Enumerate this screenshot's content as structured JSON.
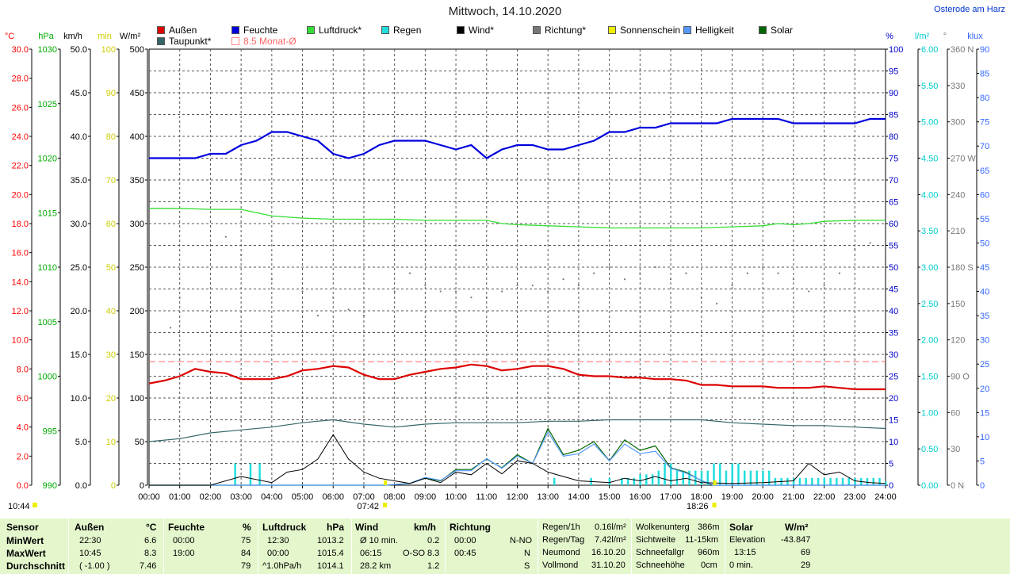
{
  "title": "Mittwoch, 14.10.2020",
  "location": "Osterode am Harz",
  "legend": [
    {
      "label": "Außen",
      "color": "#dd0000"
    },
    {
      "label": "Feuchte",
      "color": "#0000dd"
    },
    {
      "label": "Luftdruck*",
      "color": "#33dd33"
    },
    {
      "label": "Regen",
      "color": "#22dddd"
    },
    {
      "label": "Wind*",
      "color": "#000000"
    },
    {
      "label": "Richtung*",
      "color": "#777777"
    },
    {
      "label": "Sonnenschein",
      "color": "#eeee00"
    },
    {
      "label": "Helligkeit",
      "color": "#5599ff"
    },
    {
      "label": "Solar",
      "color": "#006600"
    },
    {
      "label": "Taupunkt*",
      "color": "#336666"
    },
    {
      "label": "8.5 Monat-Ø",
      "color": "#ff8888"
    }
  ],
  "chart_data": {
    "type": "line",
    "title": "Mittwoch, 14.10.2020",
    "x_ticks": [
      "00:00",
      "01:00",
      "02:00",
      "03:00",
      "04:00",
      "05:00",
      "06:00",
      "07:00",
      "08:00",
      "09:00",
      "10:00",
      "11:00",
      "12:00",
      "13:00",
      "14:00",
      "15:00",
      "16:00",
      "17:00",
      "18:00",
      "19:00",
      "20:00",
      "21:00",
      "22:00",
      "23:00",
      "24:00"
    ],
    "axes": [
      {
        "unit": "°C",
        "color": "#ff0000",
        "ticks": [
          "30.0",
          "28.0",
          "26.0",
          "24.0",
          "22.0",
          "20.0",
          "18.0",
          "16.0",
          "14.0",
          "12.0",
          "10.0",
          "8.0",
          "6.0",
          "4.0",
          "2.0",
          "0.0"
        ],
        "range": [
          0,
          30
        ]
      },
      {
        "unit": "hPa",
        "color": "#00aa00",
        "ticks": [
          "1030",
          "1025",
          "1020",
          "1015",
          "1010",
          "1005",
          "1000",
          "995",
          "990"
        ],
        "range": [
          990,
          1030
        ]
      },
      {
        "unit": "km/h",
        "color": "#000000",
        "ticks": [
          "50.0",
          "45.0",
          "40.0",
          "35.0",
          "30.0",
          "25.0",
          "20.0",
          "15.0",
          "10.0",
          "5.0",
          "0.0"
        ],
        "range": [
          0,
          50
        ]
      },
      {
        "unit": "min",
        "color": "#cccc00",
        "ticks": [
          "100",
          "90",
          "80",
          "70",
          "60",
          "50",
          "40",
          "30",
          "20",
          "10",
          "0"
        ],
        "range": [
          0,
          100
        ]
      },
      {
        "unit": "W/m²",
        "color": "#000000",
        "ticks": [
          "500",
          "450",
          "400",
          "350",
          "300",
          "250",
          "200",
          "150",
          "100",
          "50",
          "0"
        ],
        "range": [
          0,
          500
        ]
      },
      {
        "unit": "%",
        "color": "#0000cc",
        "ticks": [
          "100",
          "95",
          "90",
          "85",
          "80",
          "75",
          "70",
          "65",
          "60",
          "55",
          "50",
          "45",
          "40",
          "35",
          "30",
          "25",
          "20",
          "15",
          "10",
          "5",
          "0"
        ],
        "range": [
          0,
          100
        ]
      },
      {
        "unit": "l/m²",
        "color": "#00cccc",
        "ticks": [
          "6.00",
          "5.50",
          "5.00",
          "4.50",
          "4.00",
          "3.50",
          "3.00",
          "2.50",
          "2.00",
          "1.50",
          "1.00",
          "0.50",
          "0.00"
        ],
        "range": [
          0,
          6
        ]
      },
      {
        "unit": "°",
        "color": "#777777",
        "ticks": [
          "360 N",
          "330",
          "300",
          "270 W",
          "240",
          "210",
          "180 S",
          "150",
          "120",
          "90 O",
          "60",
          "30",
          "0 N"
        ],
        "range": [
          0,
          360
        ]
      },
      {
        "unit": "klux",
        "color": "#3366ff",
        "ticks": [
          "90",
          "85",
          "80",
          "75",
          "70",
          "65",
          "60",
          "55",
          "50",
          "45",
          "40",
          "35",
          "30",
          "25",
          "20",
          "15",
          "10",
          "5",
          "0"
        ],
        "range": [
          0,
          90
        ]
      }
    ],
    "sunrise": "07:42",
    "sunset": "18:26",
    "daylength_label": "10:44",
    "monthly_avg_temp": 8.5,
    "series": [
      {
        "name": "Außen",
        "color": "#dd0000",
        "unit": "°C",
        "x": [
          0,
          0.5,
          1,
          1.5,
          2,
          2.5,
          3,
          3.5,
          4,
          4.5,
          5,
          5.5,
          6,
          6.5,
          7,
          7.5,
          8,
          8.5,
          9,
          9.5,
          10,
          10.5,
          11,
          11.5,
          12,
          12.5,
          13,
          13.5,
          14,
          14.5,
          15,
          15.5,
          16,
          16.5,
          17,
          17.5,
          18,
          18.5,
          19,
          19.5,
          20,
          20.5,
          21,
          21.5,
          22,
          22.5,
          23,
          23.5,
          24
        ],
        "y": [
          7.0,
          7.2,
          7.5,
          8.0,
          7.8,
          7.7,
          7.3,
          7.3,
          7.3,
          7.5,
          7.9,
          8.0,
          8.2,
          8.1,
          7.6,
          7.3,
          7.3,
          7.6,
          7.8,
          8.0,
          8.1,
          8.3,
          8.2,
          7.9,
          8.0,
          8.2,
          8.2,
          8.0,
          7.6,
          7.5,
          7.5,
          7.4,
          7.4,
          7.3,
          7.3,
          7.2,
          6.9,
          6.9,
          6.8,
          6.8,
          6.8,
          6.7,
          6.7,
          6.7,
          6.8,
          6.7,
          6.6,
          6.6,
          6.6
        ]
      },
      {
        "name": "Feuchte",
        "color": "#0000dd",
        "unit": "%",
        "x": [
          0,
          0.5,
          1,
          1.5,
          2,
          2.5,
          3,
          3.5,
          4,
          4.5,
          5,
          5.5,
          6,
          6.5,
          7,
          7.5,
          8,
          8.5,
          9,
          9.5,
          10,
          10.5,
          11,
          11.5,
          12,
          12.5,
          13,
          13.5,
          14,
          14.5,
          15,
          15.5,
          16,
          16.5,
          17,
          17.5,
          18,
          18.5,
          19,
          19.5,
          20,
          20.5,
          21,
          21.5,
          22,
          22.5,
          23,
          23.5,
          24
        ],
        "y": [
          75,
          75,
          75,
          75,
          76,
          76,
          78,
          79,
          81,
          81,
          80,
          79,
          76,
          75,
          76,
          78,
          79,
          79,
          79,
          78,
          77,
          78,
          75,
          77,
          78,
          78,
          77,
          77,
          78,
          79,
          81,
          81,
          82,
          82,
          83,
          83,
          83,
          83,
          84,
          84,
          84,
          84,
          83,
          83,
          83,
          83,
          83,
          84,
          84
        ]
      },
      {
        "name": "Luftdruck*",
        "color": "#33dd33",
        "unit": "hPa",
        "x": [
          0,
          1,
          2,
          3,
          3.5,
          4,
          5,
          6,
          7,
          8,
          9,
          10,
          11,
          11.5,
          12,
          13,
          14,
          15,
          16,
          17,
          18,
          19,
          20,
          20.5,
          21,
          21.5,
          22,
          23,
          24
        ],
        "y": [
          1015.4,
          1015.4,
          1015.3,
          1015.3,
          1015.0,
          1014.7,
          1014.5,
          1014.4,
          1014.4,
          1014.4,
          1014.3,
          1014.3,
          1014.3,
          1014.0,
          1013.9,
          1013.8,
          1013.7,
          1013.6,
          1013.6,
          1013.6,
          1013.6,
          1013.7,
          1013.8,
          1014.0,
          1013.9,
          1014.0,
          1014.2,
          1014.3,
          1014.3
        ]
      },
      {
        "name": "Taupunkt*",
        "color": "#336666",
        "unit": "°C",
        "x": [
          0,
          1,
          2,
          3,
          4,
          5,
          5.5,
          6,
          7,
          8,
          9,
          10,
          11,
          12,
          13,
          14,
          15,
          16,
          17,
          18,
          19,
          20,
          21,
          22,
          23,
          24
        ],
        "y": [
          3.0,
          3.2,
          3.6,
          3.8,
          4.0,
          4.3,
          4.4,
          4.5,
          4.2,
          4.0,
          4.2,
          4.3,
          4.3,
          4.3,
          4.4,
          4.4,
          4.5,
          4.5,
          4.5,
          4.5,
          4.3,
          4.2,
          4.1,
          4.1,
          4.0,
          3.9
        ]
      },
      {
        "name": "Wind*",
        "color": "#000000",
        "unit": "km/h",
        "x": [
          0,
          2,
          3,
          4,
          4.5,
          5,
          5.5,
          6,
          6.5,
          7,
          7.5,
          8,
          8.5,
          9,
          9.5,
          10,
          10.5,
          11,
          11.5,
          12,
          12.5,
          13,
          14,
          15,
          15.5,
          16,
          16.5,
          17,
          17.5,
          18,
          19,
          20,
          21,
          21.5,
          22,
          22.5,
          23,
          23.5,
          24
        ],
        "y": [
          0,
          0,
          1.0,
          0.3,
          1.5,
          1.8,
          3.0,
          5.8,
          3.0,
          1.5,
          0.8,
          0.5,
          0.2,
          0.8,
          0.3,
          1.5,
          1.2,
          2.5,
          1.3,
          2.8,
          2.5,
          1.5,
          0.5,
          0.3,
          0.8,
          0.5,
          1.0,
          0.5,
          0.8,
          0.3,
          0.2,
          0.3,
          0.5,
          2.5,
          1.2,
          1.5,
          0.5,
          0.3,
          0.2
        ]
      },
      {
        "name": "Solar",
        "color": "#006600",
        "unit": "W/m²",
        "x": [
          0,
          7.7,
          8.5,
          9,
          9.5,
          10,
          10.5,
          11,
          11.5,
          12,
          12.5,
          13,
          13.5,
          14,
          14.5,
          15,
          15.5,
          16,
          16.5,
          17,
          17.5,
          18,
          18.4,
          24
        ],
        "y": [
          0,
          0,
          2,
          8,
          5,
          18,
          18,
          30,
          20,
          35,
          25,
          65,
          35,
          40,
          50,
          28,
          52,
          40,
          45,
          20,
          15,
          5,
          0,
          0
        ]
      },
      {
        "name": "Helligkeit",
        "color": "#5599ff",
        "unit": "klux",
        "x": [
          0,
          7.7,
          8.5,
          9,
          9.5,
          10,
          10.5,
          11,
          11.5,
          12,
          12.5,
          13,
          13.5,
          14,
          14.5,
          15,
          15.5,
          16,
          16.5,
          17,
          17.5,
          18,
          18.4,
          24
        ],
        "y": [
          0,
          0,
          0.4,
          1.6,
          1.0,
          3.0,
          3.0,
          5.5,
          3.5,
          6.0,
          4.5,
          11,
          6,
          6.5,
          8.5,
          5,
          8.5,
          6.5,
          7,
          3.5,
          2.5,
          1,
          0,
          0
        ]
      },
      {
        "name": "Richtung*",
        "color": "#777777",
        "unit": "°",
        "x": [
          0.7,
          1,
          2.5,
          3,
          4,
          5,
          5.5,
          6,
          6.5,
          7,
          8,
          8.5,
          9,
          9.5,
          10,
          10.5,
          11,
          11.5,
          12,
          12.5,
          13,
          13.5,
          14,
          14.5,
          15,
          15.5,
          16,
          16.5,
          17,
          17.5,
          18,
          18.5,
          19,
          19.5,
          20,
          20.5,
          21,
          21.5,
          22,
          22.5,
          23,
          23.5,
          24
        ],
        "y": [
          130,
          155,
          205,
          190,
          170,
          160,
          140,
          155,
          145,
          140,
          160,
          175,
          165,
          160,
          160,
          155,
          155,
          160,
          165,
          165,
          160,
          170,
          165,
          175,
          180,
          170,
          175,
          180,
          170,
          175,
          155,
          150,
          165,
          175,
          180,
          175,
          170,
          160,
          165,
          175,
          195,
          200,
          190
        ]
      },
      {
        "name": "Regen",
        "color": "#22dddd",
        "unit": "l/m²",
        "x": [
          2.8,
          3.3,
          3.6,
          13.2,
          14.4,
          15,
          15.4,
          15.6,
          15.8,
          16,
          16.2,
          16.4,
          16.6,
          16.8,
          17,
          17.2,
          17.4,
          17.6,
          17.8,
          18,
          18.2,
          18.4,
          18.6,
          18.8,
          19,
          19.2,
          19.4,
          19.6,
          19.8,
          20,
          20.2,
          20.4,
          20.6,
          20.8,
          21,
          21.2,
          21.4,
          21.6,
          21.8,
          22,
          22.2,
          22.4,
          22.6,
          22.8,
          23,
          23.2,
          23.4,
          23.6,
          23.8,
          24
        ],
        "y": [
          0.3,
          0.3,
          0.3,
          0.1,
          0.1,
          0.1,
          0.1,
          0.1,
          0.1,
          0.15,
          0.15,
          0.15,
          0.2,
          0.3,
          0.3,
          0.2,
          0.2,
          0.2,
          0.2,
          0.2,
          0.2,
          0.3,
          0.3,
          0.2,
          0.3,
          0.3,
          0.2,
          0.2,
          0.2,
          0.2,
          0.2,
          0.1,
          0.1,
          0.1,
          0.1,
          0.1,
          0.1,
          0.1,
          0.1,
          0.1,
          0.1,
          0.1,
          0.1,
          0.1,
          0.1,
          0.1,
          0.1,
          0.1,
          0.1,
          0.05
        ]
      }
    ]
  },
  "summary": {
    "row_labels": [
      "Sensor",
      "MinWert",
      "MaxWert",
      "Durchschnitt"
    ],
    "aussen": {
      "header": "Außen",
      "unit": "°C",
      "min_time": "22:30",
      "min": "6.6",
      "max_time": "10:45",
      "max": "8.3",
      "avg_time": "( -1.00 )",
      "avg": "7.46"
    },
    "feuchte": {
      "header": "Feuchte",
      "unit": "%",
      "min_time": "00:00",
      "min": "75",
      "max_time": "19:00",
      "max": "84",
      "avg": "79"
    },
    "luftdruck": {
      "header": "Luftdruck",
      "unit": "hPa",
      "min_time": "12:30",
      "min": "1013.2",
      "max_time": "00:00",
      "max": "1015.4",
      "avg_time": "^1.0hPa/h",
      "avg": "1014.1"
    },
    "wind": {
      "header": "Wind",
      "unit": "km/h",
      "min_time": "Ø 10 min.",
      "min": "0.2",
      "max_time": "06:15",
      "max_dir": "O-SO",
      "max": "8.3",
      "avg_time": "28.2 km",
      "avg": "1.2"
    },
    "richtung": {
      "header": "Richtung",
      "min_time": "00:00",
      "min": "N-NO",
      "max_time": "00:45",
      "max": "N",
      "avg": "S"
    },
    "regen": {
      "rows": [
        [
          "Regen/1h",
          "0.16l/m²"
        ],
        [
          "Regen/Tag",
          "7.42l/m²"
        ],
        [
          "Neumond",
          "16.10.20"
        ],
        [
          "Vollmond",
          "31.10.20"
        ]
      ]
    },
    "wolken": {
      "rows": [
        [
          "Wolkenunterg",
          "386m"
        ],
        [
          "Sichtweite",
          "11-15km"
        ],
        [
          "Schneefallgr",
          "960m"
        ],
        [
          "Schneehöhe",
          "0cm"
        ]
      ]
    },
    "solar": {
      "header": "Solar",
      "unit": "W/m²",
      "rows": [
        [
          "Elevation",
          "-43.847"
        ],
        [
          "13:15",
          "69"
        ],
        [
          "0 min.",
          "29"
        ]
      ]
    }
  }
}
